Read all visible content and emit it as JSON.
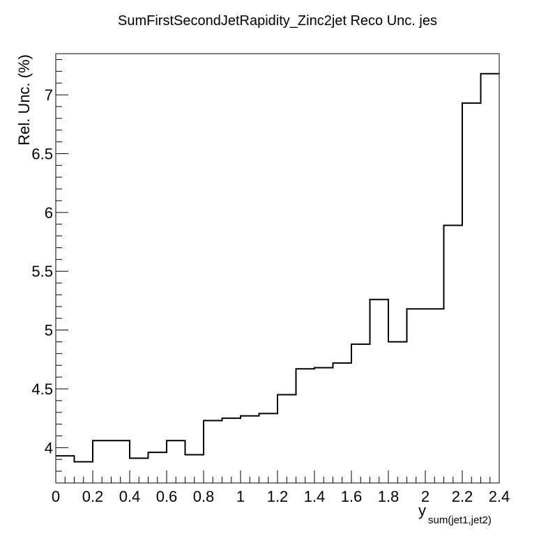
{
  "chart_data": {
    "type": "line",
    "title": "SumFirstSecondJetRapidity_Zinc2jet Reco Unc. jes",
    "xlabel_main": "y",
    "xlabel_sub": "sum(jet1,jet2)",
    "ylabel": "Rel. Unc. (%)",
    "xlim": [
      0,
      2.4
    ],
    "ylim": [
      3.7,
      7.35
    ],
    "x_ticks": [
      0,
      0.2,
      0.4,
      0.6,
      0.8,
      1,
      1.2,
      1.4,
      1.6,
      1.8,
      2,
      2.2,
      2.4
    ],
    "x_tick_labels": [
      "0",
      "0.2",
      "0.4",
      "0.6",
      "0.8",
      "1",
      "1.2",
      "1.4",
      "1.6",
      "1.8",
      "2",
      "2.2",
      "2.4"
    ],
    "y_ticks": [
      4,
      4.5,
      5,
      5.5,
      6,
      6.5,
      7
    ],
    "y_tick_labels": [
      "4",
      "4.5",
      "5",
      "5.5",
      "6",
      "6.5",
      "7"
    ],
    "grid": false,
    "legend": "none",
    "bin_edges": [
      0,
      0.1,
      0.2,
      0.3,
      0.4,
      0.5,
      0.6,
      0.7,
      0.8,
      0.9,
      1.0,
      1.1,
      1.2,
      1.3,
      1.4,
      1.5,
      1.6,
      1.7,
      1.8,
      1.9,
      2.0,
      2.1,
      2.2,
      2.3,
      2.4
    ],
    "values": [
      3.93,
      3.88,
      4.06,
      4.06,
      3.91,
      3.96,
      4.06,
      3.94,
      4.23,
      4.25,
      4.27,
      4.29,
      4.45,
      4.67,
      4.68,
      4.72,
      4.88,
      5.26,
      4.9,
      5.18,
      5.18,
      5.89,
      6.93,
      7.18
    ],
    "colors": {
      "line": "#000000",
      "frame": "#000000"
    }
  }
}
